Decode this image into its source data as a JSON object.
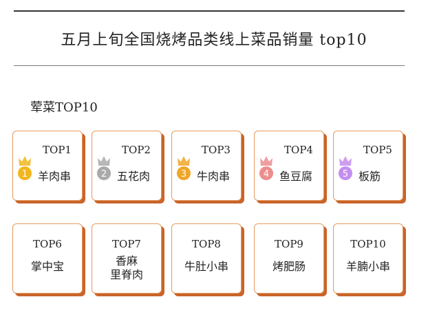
{
  "title": "五月上旬全国烧烤品类线上菜品销量 top10",
  "section_title": "荤菜TOP10",
  "colors": {
    "card_border": "#e39a5c",
    "card_shadow": "#c9642a"
  },
  "items": [
    {
      "rank": "TOP1",
      "name": "羊肉串",
      "medal": "1",
      "medal_color": "#f2b61f",
      "icon": "crown-medal-icon"
    },
    {
      "rank": "TOP2",
      "name": "五花肉",
      "medal": "2",
      "medal_color": "#aaaaaa",
      "icon": "crown-medal-icon"
    },
    {
      "rank": "TOP3",
      "name": "牛肉串",
      "medal": "3",
      "medal_color": "#f0a628",
      "icon": "crown-medal-icon"
    },
    {
      "rank": "TOP4",
      "name": "鱼豆腐",
      "medal": "4",
      "medal_color": "#ec8e8e",
      "icon": "crown-medal-icon"
    },
    {
      "rank": "TOP5",
      "name": "板筋",
      "medal": "5",
      "medal_color": "#c48ef0",
      "icon": "crown-medal-icon"
    },
    {
      "rank": "TOP6",
      "name": "掌中宝"
    },
    {
      "rank": "TOP7",
      "name": "香麻\n里脊肉"
    },
    {
      "rank": "TOP8",
      "name": "牛肚小串"
    },
    {
      "rank": "TOP9",
      "name": "烤肥肠"
    },
    {
      "rank": "TOP10",
      "name": "羊腩小串"
    }
  ]
}
